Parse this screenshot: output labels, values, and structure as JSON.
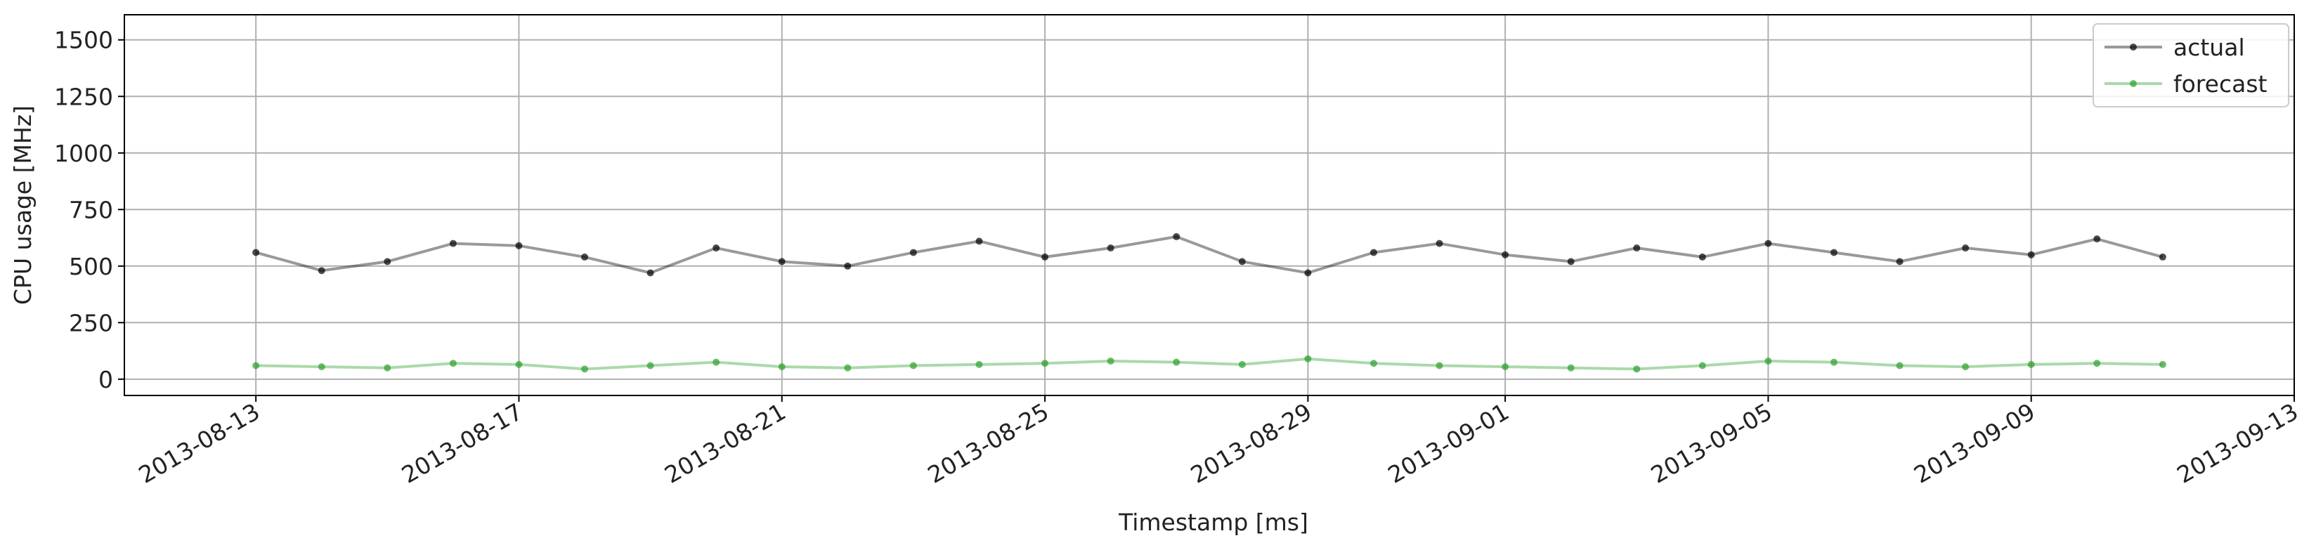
{
  "chart_data": {
    "type": "line",
    "x_label": "Timestamp [ms]",
    "y_label": "CPU usage [MHz]",
    "x": [
      "2013-08-13",
      "2013-08-14",
      "2013-08-15",
      "2013-08-16",
      "2013-08-17",
      "2013-08-18",
      "2013-08-19",
      "2013-08-20",
      "2013-08-21",
      "2013-08-22",
      "2013-08-23",
      "2013-08-24",
      "2013-08-25",
      "2013-08-26",
      "2013-08-27",
      "2013-08-28",
      "2013-08-29",
      "2013-08-30",
      "2013-08-31",
      "2013-09-01",
      "2013-09-02",
      "2013-09-03",
      "2013-09-04",
      "2013-09-05",
      "2013-09-06",
      "2013-09-07",
      "2013-09-08",
      "2013-09-09",
      "2013-09-10",
      "2013-09-11"
    ],
    "series": [
      {
        "name": "actual",
        "color": "#000000",
        "values": [
          560,
          480,
          520,
          600,
          590,
          540,
          470,
          580,
          520,
          500,
          560,
          610,
          540,
          580,
          630,
          520,
          470,
          560,
          600,
          550,
          520,
          580,
          540,
          600,
          560,
          520,
          580,
          550,
          620,
          540
        ]
      },
      {
        "name": "forecast",
        "color": "#2ca02c",
        "values": [
          60,
          55,
          50,
          70,
          65,
          45,
          60,
          75,
          55,
          50,
          60,
          65,
          70,
          80,
          75,
          65,
          90,
          70,
          60,
          55,
          50,
          45,
          60,
          80,
          75,
          60,
          55,
          65,
          70,
          65
        ]
      }
    ],
    "xlim": [
      "2013-08-11",
      "2013-09-13"
    ],
    "xticks": [
      "2013-08-13",
      "2013-08-17",
      "2013-08-21",
      "2013-08-25",
      "2013-08-29",
      "2013-09-01",
      "2013-09-05",
      "2013-09-09",
      "2013-09-13"
    ],
    "ylim": [
      -72,
      1611
    ],
    "yticks": [
      0,
      250,
      500,
      750,
      1000,
      1250,
      1500
    ],
    "grid": true,
    "legend": "upper right"
  }
}
